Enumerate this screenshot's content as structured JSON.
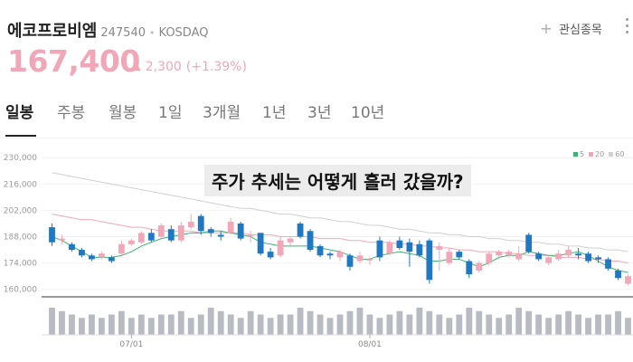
{
  "stock": {
    "name": "에코프로비엠",
    "code": "247540",
    "separator": "•",
    "market": "KOSDAQ",
    "price": "167,400",
    "change_arrow": "▲",
    "change_abs": "2,300",
    "change_pct": "(+1.39%)",
    "favorite_label": "관심종목"
  },
  "tabs": [
    "일봉",
    "주봉",
    "월봉",
    "1일",
    "3개월",
    "1년",
    "3년",
    "10년"
  ],
  "colors": {
    "up": "#f2a7b8",
    "down": "#1f78c1",
    "ma5": "#3cb371",
    "ma20": "#f2a7b8",
    "ma60": "#d0d0d0"
  },
  "chart_data": {
    "type": "candlestick",
    "annotation": "주가 추세는 어떻게 흘러 갔을까?",
    "legend": [
      "5",
      "20",
      "60"
    ],
    "y_ticks": [
      "230,000",
      "216,000",
      "202,000",
      "188,000",
      "174,000",
      "160,000"
    ],
    "y_tick_values": [
      230000,
      216000,
      202000,
      188000,
      174000,
      160000
    ],
    "ylim": [
      156000,
      233000
    ],
    "x_labels": [
      {
        "index": 8,
        "label": "07/01"
      },
      {
        "index": 32,
        "label": "08/01"
      }
    ],
    "candles": [
      [
        193000,
        185000,
        195000,
        183000
      ],
      [
        186000,
        187000,
        189000,
        184000
      ],
      [
        184000,
        181000,
        185000,
        180000
      ],
      [
        181000,
        178000,
        182000,
        177000
      ],
      [
        178000,
        176000,
        179000,
        175000
      ],
      [
        177000,
        179000,
        180000,
        176000
      ],
      [
        177000,
        175000,
        178000,
        174000
      ],
      [
        179000,
        184000,
        186000,
        178000
      ],
      [
        184000,
        186000,
        187000,
        183000
      ],
      [
        185000,
        190000,
        191000,
        184000
      ],
      [
        190000,
        186000,
        192000,
        185000
      ],
      [
        188000,
        194000,
        195000,
        187000
      ],
      [
        192000,
        186000,
        194000,
        185000
      ],
      [
        186000,
        194000,
        196000,
        185000
      ],
      [
        193000,
        196000,
        200000,
        192000
      ],
      [
        199000,
        191000,
        200000,
        189000
      ],
      [
        192000,
        190000,
        193000,
        188000
      ],
      [
        189000,
        188000,
        191000,
        186000
      ],
      [
        190000,
        196000,
        198000,
        189000
      ],
      [
        195000,
        187000,
        196000,
        186000
      ],
      [
        189000,
        189000,
        191000,
        185000
      ],
      [
        190000,
        179000,
        190000,
        178000
      ],
      [
        180000,
        177000,
        182000,
        176000
      ],
      [
        178000,
        186000,
        188000,
        177000
      ],
      [
        185000,
        187000,
        188000,
        183000
      ],
      [
        195000,
        188000,
        196000,
        187000
      ],
      [
        191000,
        181000,
        192000,
        180000
      ],
      [
        183000,
        178000,
        184000,
        177000
      ],
      [
        179000,
        178000,
        180000,
        176000
      ],
      [
        177000,
        180000,
        181000,
        175000
      ],
      [
        178000,
        172000,
        179000,
        170000
      ],
      [
        175000,
        178000,
        180000,
        174000
      ],
      [
        176000,
        176000,
        177000,
        173000
      ],
      [
        186000,
        177000,
        188000,
        175000
      ],
      [
        179000,
        185000,
        186000,
        178000
      ],
      [
        186000,
        182000,
        188000,
        181000
      ],
      [
        185000,
        180000,
        187000,
        172000
      ],
      [
        184000,
        178000,
        186000,
        177000
      ],
      [
        186000,
        165000,
        187000,
        163000
      ],
      [
        181000,
        183000,
        185000,
        170000
      ],
      [
        174000,
        180000,
        182000,
        173000
      ],
      [
        180000,
        177000,
        181000,
        176000
      ],
      [
        175000,
        168000,
        176000,
        166000
      ],
      [
        170000,
        174000,
        175000,
        169000
      ],
      [
        174000,
        179000,
        180000,
        173000
      ],
      [
        178000,
        180000,
        181000,
        176000
      ],
      [
        178000,
        180000,
        181000,
        177000
      ],
      [
        176000,
        179000,
        183000,
        175000
      ],
      [
        189000,
        180000,
        190000,
        179000
      ],
      [
        179000,
        176000,
        180000,
        175000
      ],
      [
        174000,
        177000,
        178000,
        173000
      ],
      [
        176000,
        179000,
        181000,
        175000
      ],
      [
        178000,
        181000,
        183000,
        177000
      ],
      [
        179000,
        178000,
        182000,
        176000
      ],
      [
        179000,
        175000,
        180000,
        174000
      ],
      [
        177000,
        176000,
        178000,
        174000
      ],
      [
        176000,
        171000,
        177000,
        170000
      ],
      [
        170000,
        166000,
        171000,
        165000
      ],
      [
        163000,
        167000,
        168000,
        162000
      ]
    ],
    "ma5": [
      188000,
      186000,
      183000,
      180000,
      177000,
      177000,
      177000,
      178000,
      180000,
      183000,
      185000,
      187000,
      188000,
      189000,
      190000,
      190000,
      191000,
      191000,
      190000,
      189000,
      188000,
      185000,
      184000,
      183000,
      183000,
      183000,
      183000,
      182000,
      181000,
      180000,
      178000,
      176000,
      176000,
      178000,
      179000,
      180000,
      179000,
      178000,
      175000,
      175000,
      176000,
      176000,
      174000,
      172000,
      174000,
      177000,
      178000,
      178000,
      180000,
      179000,
      178000,
      178000,
      179000,
      180000,
      178000,
      175000,
      172000,
      170000,
      169000
    ],
    "ma20": [
      200000,
      199000,
      198000,
      197000,
      197000,
      196000,
      195000,
      194000,
      193000,
      193000,
      192000,
      191000,
      191000,
      191000,
      191000,
      190000,
      190000,
      190000,
      190000,
      190000,
      189000,
      189000,
      189000,
      188000,
      188000,
      188000,
      188000,
      187000,
      187000,
      187000,
      186000,
      186000,
      185000,
      185000,
      185000,
      184000,
      184000,
      183000,
      183000,
      182000,
      182000,
      181000,
      181000,
      180000,
      180000,
      180000,
      179000,
      179000,
      178000,
      178000,
      178000,
      177000,
      177000,
      177000,
      176000,
      176000,
      175000,
      175000,
      174000
    ],
    "ma60": [
      222000,
      221000,
      220000,
      219000,
      218000,
      217000,
      216000,
      215000,
      214000,
      213000,
      212000,
      211000,
      210000,
      209000,
      208000,
      207000,
      206000,
      205000,
      204000,
      203000,
      203000,
      202000,
      201000,
      200000,
      200000,
      199000,
      198000,
      198000,
      197000,
      196000,
      196000,
      195000,
      194000,
      194000,
      193000,
      192000,
      192000,
      191000,
      190000,
      190000,
      189000,
      189000,
      188000,
      188000,
      187000,
      187000,
      186000,
      186000,
      185000,
      185000,
      184000,
      184000,
      183000,
      183000,
      182000,
      182000,
      181000,
      181000,
      180000
    ],
    "volumes": [
      8,
      7,
      6,
      5,
      6,
      5,
      6,
      7,
      5,
      6,
      5,
      6,
      6,
      7,
      5,
      6,
      8,
      7,
      6,
      5,
      7,
      6,
      5,
      6,
      6,
      8,
      7,
      6,
      5,
      6,
      7,
      8,
      6,
      5,
      6,
      7,
      6,
      8,
      7,
      6,
      5,
      6,
      8,
      7,
      6,
      5,
      6,
      8,
      7,
      6,
      5,
      6,
      7,
      6,
      5,
      6,
      6,
      7,
      5
    ]
  }
}
